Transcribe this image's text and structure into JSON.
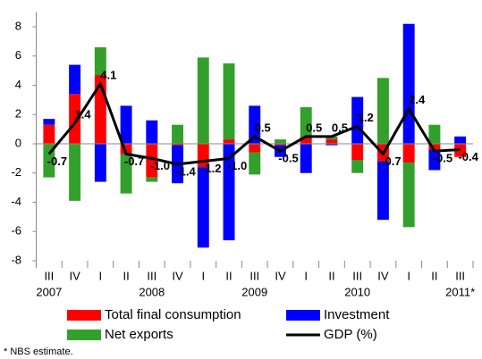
{
  "chart_data": {
    "type": "stacked-bar-line",
    "categories": [
      "III",
      "IV",
      "I",
      "II",
      "III",
      "IV",
      "I",
      "II",
      "III",
      "IV",
      "I",
      "II",
      "III",
      "IV",
      "I",
      "II",
      "III"
    ],
    "year_labels": [
      "2007",
      null,
      null,
      null,
      "2008",
      null,
      null,
      null,
      "2009",
      null,
      null,
      null,
      "2010",
      null,
      null,
      null,
      "2011*"
    ],
    "series": [
      {
        "name": "Total final consumption",
        "color": "#ff0000",
        "kind": "bar",
        "values": [
          1.3,
          3.4,
          4.7,
          -0.7,
          -2.3,
          -0.1,
          -1.6,
          0.3,
          -0.6,
          -0.1,
          0.5,
          0.3,
          -1.1,
          -1.2,
          -1.3,
          -0.4,
          -0.9
        ]
      },
      {
        "name": "Investment",
        "color": "#0000ff",
        "kind": "bar",
        "values": [
          0.4,
          2.0,
          -2.6,
          2.6,
          1.6,
          -2.6,
          -5.5,
          -6.6,
          2.6,
          -0.8,
          -2.0,
          -0.1,
          3.2,
          -4.0,
          8.2,
          -1.4,
          0.5
        ]
      },
      {
        "name": "Net exports",
        "color": "#33a02c",
        "kind": "bar",
        "values": [
          -2.3,
          -3.9,
          1.9,
          -2.7,
          -0.3,
          1.3,
          5.9,
          5.2,
          -1.5,
          0.3,
          2.0,
          0.2,
          -0.9,
          4.5,
          -4.4,
          1.3,
          0.0
        ]
      },
      {
        "name": "GDP (%)",
        "color": "#000000",
        "kind": "line",
        "values": [
          -0.7,
          1.4,
          4.1,
          -0.7,
          -1.0,
          -1.4,
          -1.2,
          -1.0,
          0.5,
          -0.5,
          0.5,
          0.5,
          1.2,
          -0.7,
          2.4,
          -0.5,
          -0.4
        ],
        "value_labels": [
          "-0.7",
          "1.4",
          "4.1",
          "-0.7",
          "-1.0",
          "-1.4",
          "-1.2",
          "-1.0",
          "0.5",
          "-0.5",
          "0.5",
          "0.5",
          "1.2",
          "-0.7",
          "2.4",
          "-0.5",
          "-0.4"
        ]
      }
    ],
    "ylim": [
      -8,
      9
    ],
    "yticks": [
      -8,
      -6,
      -4,
      -2,
      0,
      2,
      4,
      6,
      8
    ],
    "grid": false,
    "footnote": "* NBS estimate."
  }
}
